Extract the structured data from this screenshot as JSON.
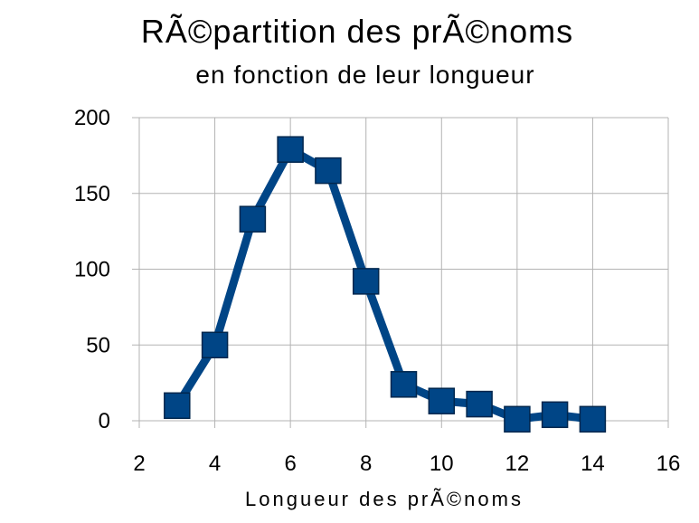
{
  "chart_data": {
    "type": "line",
    "title": "RÃ©partition des prÃ©noms",
    "subtitle": "en fonction de leur longueur",
    "xlabel": "Longueur des prÃ©noms",
    "ylabel": "",
    "xlim": [
      2,
      16
    ],
    "ylim": [
      0,
      200
    ],
    "x_ticks": [
      2,
      4,
      6,
      8,
      10,
      12,
      14,
      16
    ],
    "y_ticks": [
      0,
      50,
      100,
      150,
      200
    ],
    "grid": true,
    "legend": "none",
    "marker": "square",
    "series": [
      {
        "x": [
          3,
          4,
          5,
          6,
          7,
          8,
          9,
          10,
          11,
          12,
          13,
          14
        ],
        "values": [
          10,
          50,
          133,
          179,
          165,
          92,
          24,
          13,
          11,
          1,
          4,
          1
        ]
      }
    ]
  },
  "colors": {
    "series": "#004586",
    "marker_stroke": "#00264d",
    "grid": "#b3b3b3"
  }
}
